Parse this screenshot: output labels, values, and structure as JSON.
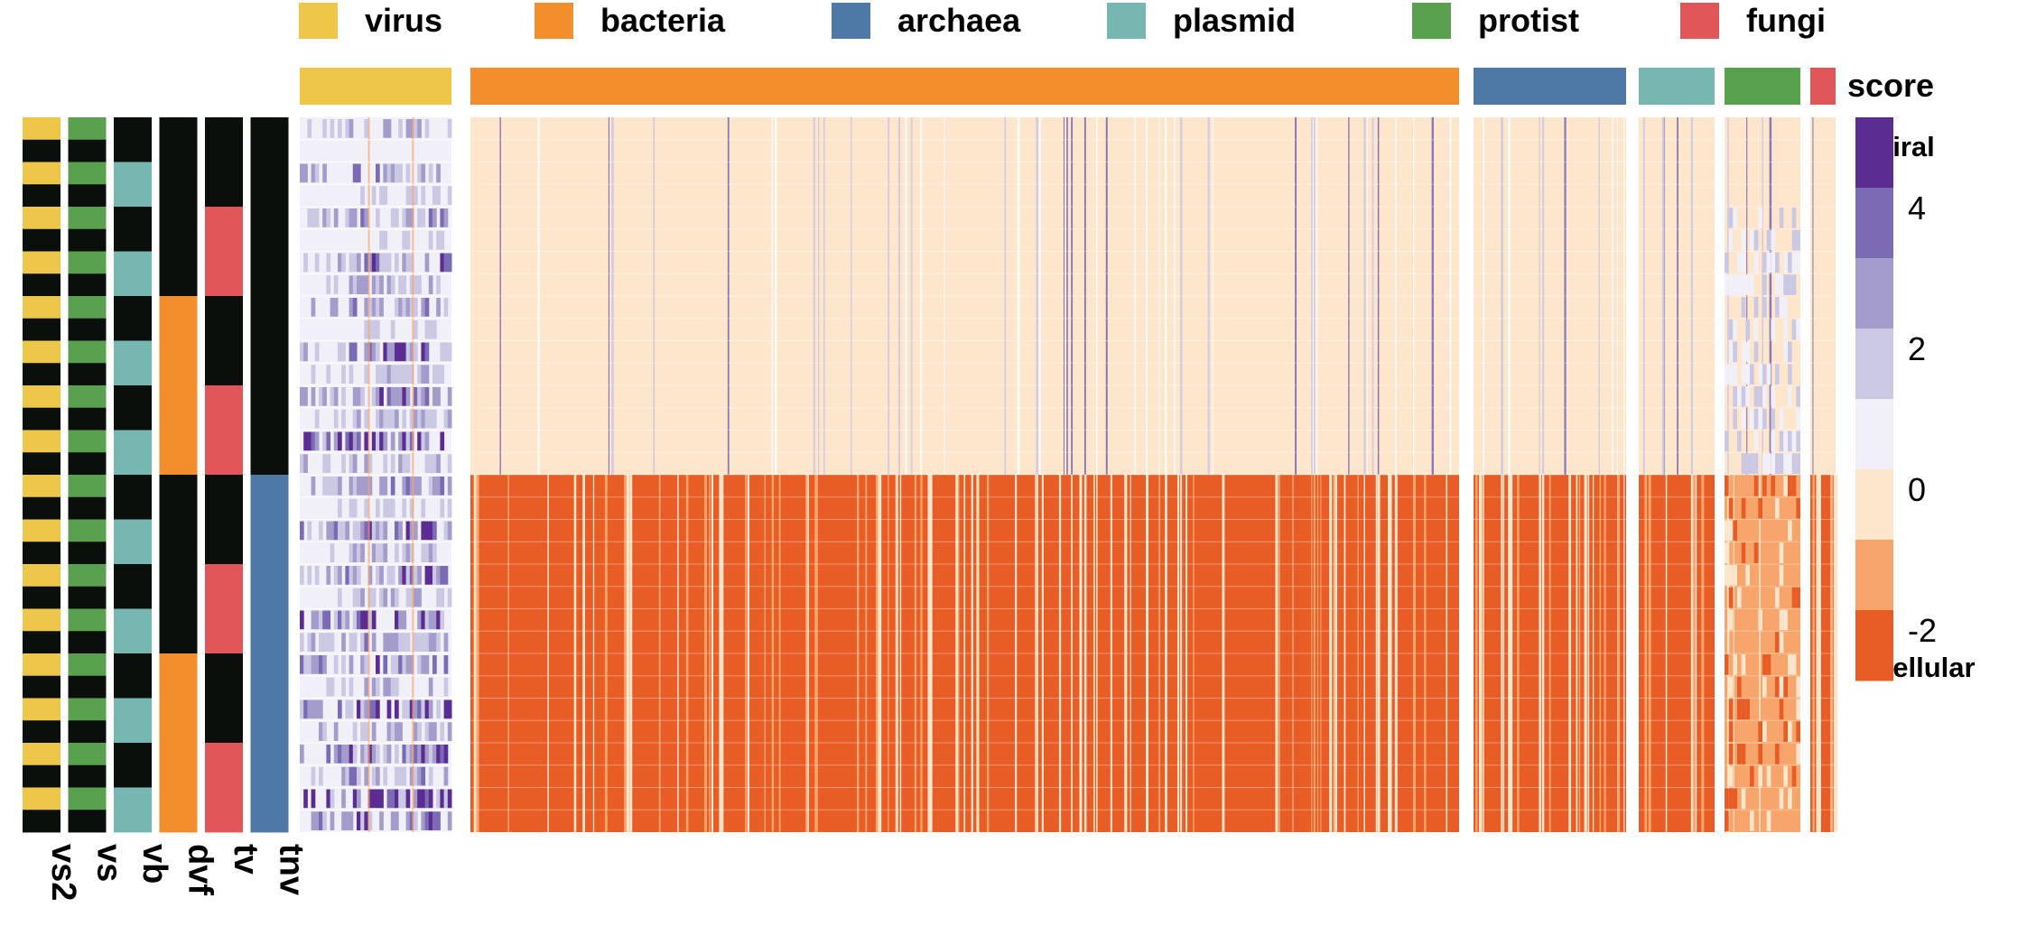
{
  "chart_data": {
    "type": "heatmap",
    "legend": {
      "position": "top",
      "entries": [
        {
          "label": "virus",
          "color": "#eec74a"
        },
        {
          "label": "bacteria",
          "color": "#f28e2c"
        },
        {
          "label": "archaea",
          "color": "#4e79a7"
        },
        {
          "label": "plasmid",
          "color": "#76b7b2"
        },
        {
          "label": "protist",
          "color": "#59a14f"
        },
        {
          "label": "fungi",
          "color": "#e15759"
        }
      ]
    },
    "column_groups": [
      {
        "label": "virus",
        "color": "#eec74a",
        "relative_width": 0.088
      },
      {
        "label": "bacteria",
        "color": "#f28e2c",
        "relative_width": 0.577
      },
      {
        "label": "archaea",
        "color": "#4e79a7",
        "relative_width": 0.09
      },
      {
        "label": "plasmid",
        "color": "#76b7b2",
        "relative_width": 0.044
      },
      {
        "label": "protist",
        "color": "#59a14f",
        "relative_width": 0.044
      },
      {
        "label": "fungi",
        "color": "#e15759",
        "relative_width": 0.015
      }
    ],
    "row_annotation_tracks": [
      {
        "label": "vs2",
        "pattern": "alternating",
        "values": [
          "virus",
          "off"
        ],
        "run_length": 1
      },
      {
        "label": "vs",
        "pattern": "alternating",
        "values": [
          "protist",
          "off"
        ],
        "run_length": 1
      },
      {
        "label": "vb",
        "pattern": "alternating",
        "values": [
          "off",
          "plasmid"
        ],
        "run_length": 2
      },
      {
        "label": "dvf",
        "pattern": "alternating",
        "values": [
          "off",
          "bacteria"
        ],
        "run_length": 8
      },
      {
        "label": "tv",
        "pattern": "alternating",
        "values": [
          "off",
          "fungi"
        ],
        "run_length": 4
      },
      {
        "label": "tnv",
        "pattern": "alternating",
        "values": [
          "off",
          "archaea"
        ],
        "run_length": 16
      }
    ],
    "row_count": 32,
    "off_color": "#0b0f0c",
    "score_scale": {
      "title": "score",
      "type": "binned",
      "top_label": "viral",
      "bottom_label": "cellular",
      "tick_values": [
        4,
        2,
        0,
        -2
      ],
      "bins": [
        {
          "max": 6,
          "min": 4,
          "color": "#5b2d93"
        },
        {
          "max": 4,
          "min": 3,
          "color": "#7b6bb5"
        },
        {
          "max": 3,
          "min": 2,
          "color": "#a49ccb"
        },
        {
          "max": 2,
          "min": 1,
          "color": "#cbc8e3"
        },
        {
          "max": 1,
          "min": 0,
          "color": "#f1eff7"
        },
        {
          "max": 0,
          "min": -1,
          "color": "#fde6cc"
        },
        {
          "max": -1,
          "min": -2,
          "color": "#f7a56b"
        },
        {
          "max": -2,
          "min": -4,
          "color": "#e85c26"
        }
      ]
    },
    "block_summary": {
      "virus": {
        "top_rows_background": "#f1eff7",
        "bottom_rows_background": "#f1eff7",
        "dominant_signal": "viral (purple), strongest in rows where vs2/vs/vb/tv are on"
      },
      "bacteria": {
        "top_rows_background": "#fde6cc",
        "bottom_rows_background": "#e85c26"
      },
      "archaea": {
        "top_rows_background": "#fde6cc",
        "bottom_rows_background": "#e85c26"
      },
      "plasmid": {
        "top_rows_background": "#fde6cc",
        "bottom_rows_background": "#e85c26"
      },
      "protist": {
        "top_rows_background": "#fde6cc",
        "bottom_rows_background": "#f7a56b"
      },
      "fungi": {
        "top_rows_background": "#fde6cc",
        "bottom_rows_background": "#e85c26"
      }
    }
  }
}
